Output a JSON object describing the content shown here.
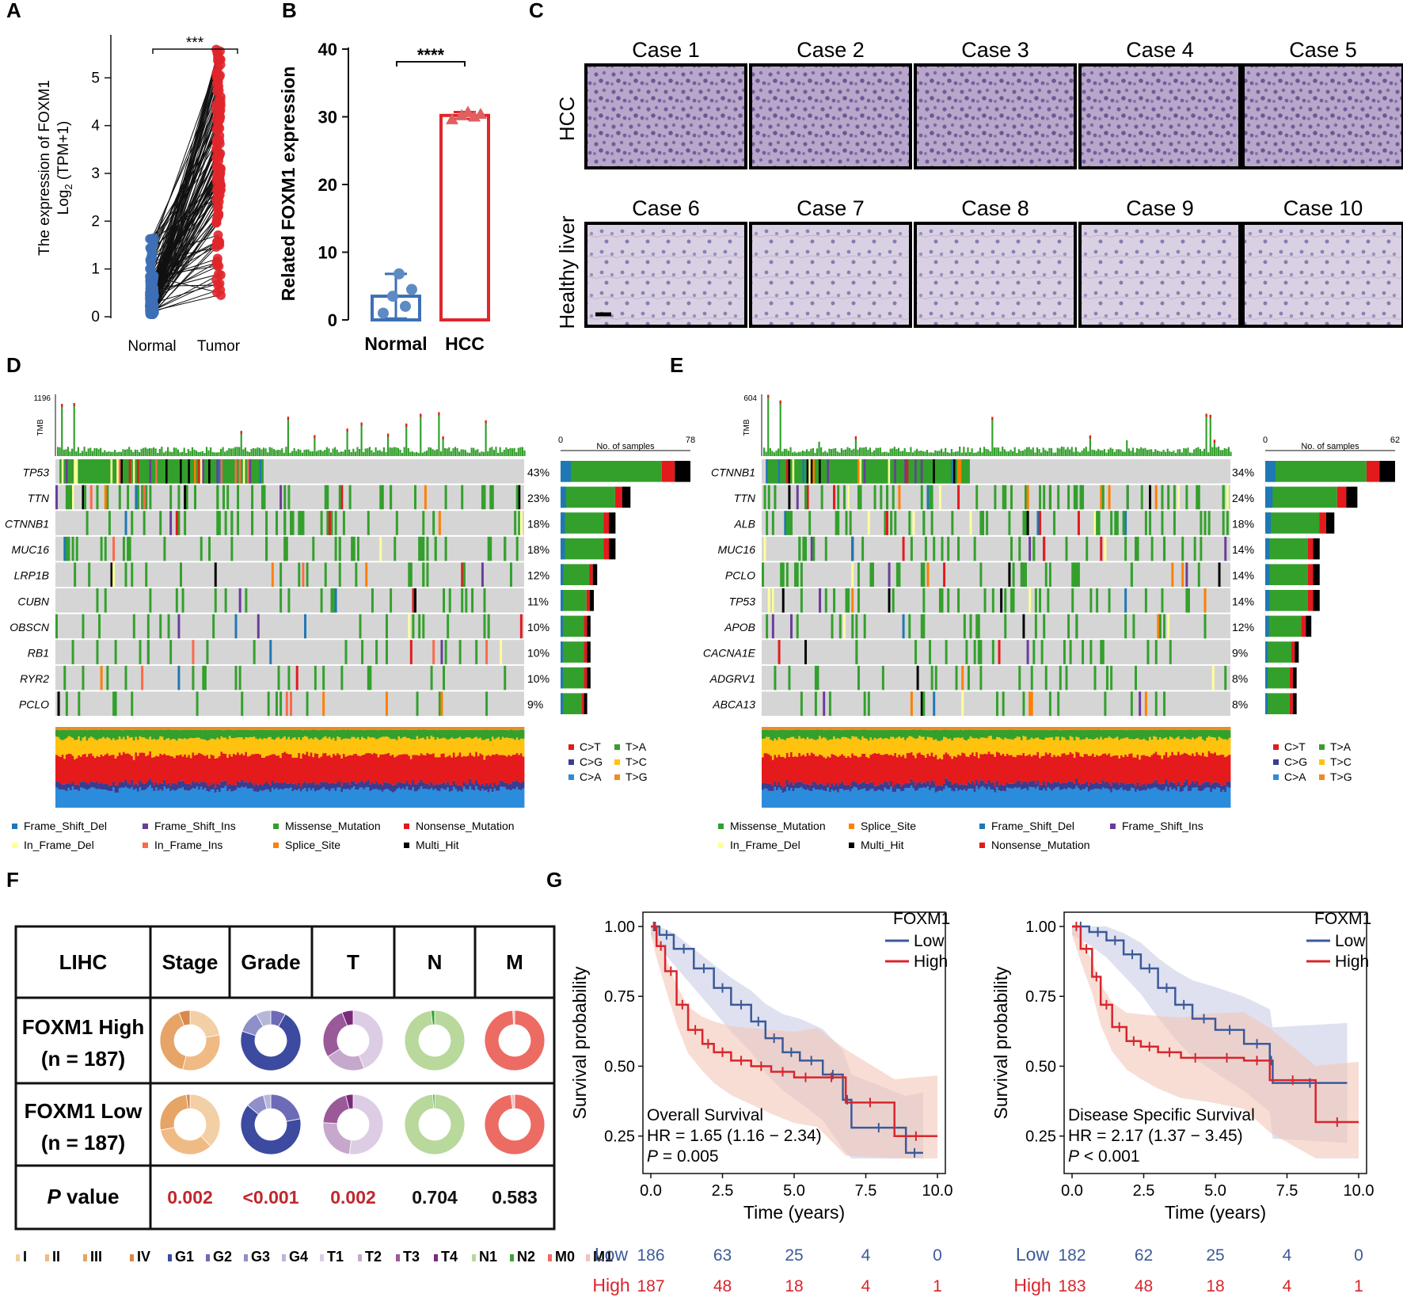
{
  "panel_labels": [
    "A",
    "B",
    "C",
    "D",
    "E",
    "F",
    "G"
  ],
  "colors": {
    "normal": "#3d6fb6",
    "tumor": "#e0262b",
    "lowline": "#3b5a9a",
    "highline": "#d7262c",
    "grey": "#d5d5d5",
    "Frame_Shift_Del": "#1f78b4",
    "Frame_Shift_Ins": "#6a3d9a",
    "Missense_Mutation": "#33a02c",
    "Nonsense_Mutation": "#e31a1c",
    "In_Frame_Del": "#ffff99",
    "In_Frame_Ins": "#fb6a4a",
    "Splice_Site": "#ff7f00",
    "Multi_Hit": "#000000",
    "CT": "#e41a1c",
    "CG": "#3a3d91",
    "CA": "#2b8cdc",
    "TA": "#33a02c",
    "TC": "#ffc20e",
    "TG": "#f08a24"
  },
  "chart_data": [
    {
      "id": "A",
      "type": "scatter",
      "ylabel": "The expression of FOXM1",
      "ylabel2": "Log2 (TPM+1)",
      "ylabel2_main": "Log",
      "ylabel2_sub": "2",
      "ylabel2_rest": " (TPM+1)",
      "categories": [
        "Normal",
        "Tumor"
      ],
      "yticks": [
        "0",
        "1",
        "2",
        "3",
        "4",
        "5"
      ],
      "ylim": [
        0,
        5.9
      ],
      "significance": "***",
      "normal_range": [
        0.05,
        1.75
      ],
      "tumor_range": [
        0.4,
        5.6
      ]
    },
    {
      "id": "B",
      "type": "bar",
      "ylabel": "Related FOXM1 expression",
      "categories": [
        "Normal",
        "HCC"
      ],
      "values": [
        3.5,
        30.2
      ],
      "error": [
        3.3,
        0.5
      ],
      "yticks": [
        "0",
        "10",
        "20",
        "30",
        "40"
      ],
      "ylim": [
        0,
        40
      ],
      "significance": "****",
      "normal_points": [
        1.0,
        2.0,
        3.5,
        4.5,
        6.8
      ],
      "hcc_points": [
        29.6,
        30.0,
        30.2,
        30.4,
        30.7
      ]
    },
    {
      "id": "C",
      "type": "image-grid",
      "row_labels": [
        "HCC",
        "Healthy liver"
      ],
      "cases": [
        "Case 1",
        "Case 2",
        "Case 3",
        "Case 4",
        "Case 5",
        "Case 6",
        "Case 7",
        "Case 8",
        "Case 9",
        "Case 10"
      ]
    },
    {
      "id": "D",
      "type": "oncoplot",
      "tmb_label": "TMB",
      "tmb_max": "1196",
      "axis_label": "No. of samples",
      "axis_min": "0",
      "axis_max": "78",
      "genes": [
        "TP53",
        "TTN",
        "CTNNB1",
        "MUC16",
        "LRP1B",
        "CUBN",
        "OBSCN",
        "RB1",
        "RYR2",
        "PCLO"
      ],
      "percents": [
        "43%",
        "23%",
        "18%",
        "18%",
        "12%",
        "11%",
        "10%",
        "10%",
        "10%",
        "9%"
      ],
      "counts": [
        78,
        42,
        33,
        33,
        22,
        20,
        18,
        18,
        18,
        16
      ],
      "sample_axis_max": 78,
      "legend": [
        "Frame_Shift_Del",
        "Frame_Shift_Ins",
        "Missense_Mutation",
        "Nonsense_Mutation",
        "In_Frame_Del",
        "In_Frame_Ins",
        "Splice_Site",
        "Multi_Hit"
      ],
      "titv_legend": [
        "C>T",
        "T>A",
        "C>G",
        "T>C",
        "C>A",
        "T>G"
      ]
    },
    {
      "id": "E",
      "type": "oncoplot",
      "tmb_label": "TMB",
      "tmb_max": "604",
      "axis_label": "No. of samples",
      "axis_min": "0",
      "axis_max": "62",
      "genes": [
        "CTNNB1",
        "TTN",
        "ALB",
        "MUC16",
        "PCLO",
        "TP53",
        "APOB",
        "CACNA1E",
        "ADGRV1",
        "ABCA13"
      ],
      "percents": [
        "34%",
        "24%",
        "18%",
        "14%",
        "14%",
        "14%",
        "12%",
        "9%",
        "8%",
        "8%"
      ],
      "counts": [
        62,
        44,
        33,
        26,
        26,
        26,
        22,
        16,
        15,
        15
      ],
      "sample_axis_max": 62,
      "legend": [
        "Missense_Mutation",
        "Splice_Site",
        "Frame_Shift_Del",
        "Frame_Shift_Ins",
        "In_Frame_Del",
        "Multi_Hit",
        "Nonsense_Mutation"
      ],
      "titv_legend": [
        "C>T",
        "T>A",
        "C>G",
        "T>C",
        "C>A",
        "T>G"
      ]
    },
    {
      "id": "F",
      "type": "table",
      "headers": [
        "LIHC",
        "Stage",
        "Grade",
        "T",
        "N",
        "M"
      ],
      "rows": [
        {
          "label1": "FOXM1 High",
          "label2": "(n = 187)"
        },
        {
          "label1": "FOXM1 Low",
          "label2": "(n = 187)"
        }
      ],
      "pvalue_label": "P",
      "pvalue_label_rest": " value",
      "pvalues": [
        "0.002",
        "<0.001",
        "0.002",
        "0.704",
        "0.583"
      ],
      "pvalue_colors": [
        "#c0272d",
        "#c0272d",
        "#c0272d",
        "#111111",
        "#111111"
      ],
      "donuts": {
        "high": [
          [
            0.22,
            0.32,
            0.4,
            0.06
          ],
          [
            0.08,
            0.72,
            0.12,
            0.08
          ],
          [
            0.44,
            0.22,
            0.28,
            0.06
          ],
          [
            0.98,
            0.02
          ],
          [
            0.99,
            0.01
          ]
        ],
        "low": [
          [
            0.38,
            0.34,
            0.26,
            0.02
          ],
          [
            0.22,
            0.64,
            0.1,
            0.04
          ],
          [
            0.52,
            0.24,
            0.2,
            0.04
          ],
          [
            0.99,
            0.01
          ],
          [
            0.98,
            0.02
          ]
        ]
      },
      "donut_colors": [
        [
          "#f3cfa5",
          "#efba84",
          "#e6a466",
          "#d9894b"
        ],
        [
          "#6d6bb8",
          "#3c4aa0",
          "#8f8fc9",
          "#b7b6da"
        ],
        [
          "#dccde4",
          "#c7a8cd",
          "#9a5a9a",
          "#7a2a7a"
        ],
        [
          "#b8d89c",
          "#3aa53a"
        ],
        [
          "#ec6b63",
          "#f4c2bd"
        ]
      ],
      "legend": [
        "I",
        "II",
        "III",
        "IV",
        "G1",
        "G2",
        "G3",
        "G4",
        "T1",
        "T2",
        "T3",
        "T4",
        "N1",
        "N2",
        "M0",
        "M1"
      ],
      "legend_colors": [
        "#f3cfa5",
        "#efba84",
        "#e6a466",
        "#d9894b",
        "#3c4aa0",
        "#6d6bb8",
        "#8f8fc9",
        "#b7b6da",
        "#dccde4",
        "#c7a8cd",
        "#9a5a9a",
        "#7a2a7a",
        "#b8d89c",
        "#3aa53a",
        "#ec6b63",
        "#f4c2bd"
      ]
    },
    {
      "id": "G1",
      "type": "line",
      "title": "Overall Survival",
      "hr": "HR = 1.65 (1.16 − 2.34)",
      "p": "P",
      "p_rest": " = 0.005",
      "xlabel": "Time (years)",
      "ylabel": "Survival probability",
      "xticks": [
        "0.0",
        "2.5",
        "5.0",
        "7.5",
        "10.0"
      ],
      "yticks": [
        "0.25",
        "0.50",
        "0.75",
        "1.00"
      ],
      "xlim": [
        0,
        10
      ],
      "ylim": [
        0.15,
        1.0
      ],
      "legend_title": "FOXM1",
      "legend": [
        "Low",
        "High"
      ],
      "series": [
        {
          "name": "Low",
          "x": [
            0,
            0.3,
            0.8,
            1.5,
            2.2,
            2.8,
            3.5,
            4.0,
            4.6,
            5.2,
            6.0,
            6.7,
            7.0,
            8.9,
            9.5
          ],
          "y": [
            1.0,
            0.97,
            0.92,
            0.85,
            0.78,
            0.72,
            0.66,
            0.6,
            0.55,
            0.52,
            0.47,
            0.38,
            0.28,
            0.19,
            0.19
          ]
        },
        {
          "name": "High",
          "x": [
            0,
            0.2,
            0.5,
            0.9,
            1.3,
            1.8,
            2.2,
            2.8,
            3.5,
            4.2,
            5.0,
            5.8,
            6.8,
            8.5,
            10.0
          ],
          "y": [
            1.0,
            0.93,
            0.84,
            0.72,
            0.63,
            0.58,
            0.55,
            0.52,
            0.5,
            0.48,
            0.46,
            0.46,
            0.37,
            0.25,
            0.25
          ]
        }
      ],
      "risk_labels": [
        "Low",
        "High"
      ],
      "risk_low": [
        "186",
        "63",
        "25",
        "4",
        "0"
      ],
      "risk_high": [
        "187",
        "48",
        "18",
        "4",
        "1"
      ]
    },
    {
      "id": "G2",
      "type": "line",
      "title": "Disease Specific Survival",
      "hr": "HR = 2.17 (1.37 − 3.45)",
      "p": "P",
      "p_rest": " < 0.001",
      "xlabel": "Time (years)",
      "ylabel": "Survival probability",
      "xticks": [
        "0.0",
        "2.5",
        "5.0",
        "7.5",
        "10.0"
      ],
      "yticks": [
        "0.25",
        "0.50",
        "0.75",
        "1.00"
      ],
      "xlim": [
        0,
        10
      ],
      "ylim": [
        0.15,
        1.0
      ],
      "legend_title": "FOXM1",
      "legend": [
        "Low",
        "High"
      ],
      "series": [
        {
          "name": "Low",
          "x": [
            0,
            0.6,
            1.2,
            1.8,
            2.4,
            3.0,
            3.6,
            4.2,
            5.0,
            6.0,
            6.9,
            7.0,
            9.6
          ],
          "y": [
            1.0,
            0.98,
            0.95,
            0.9,
            0.85,
            0.78,
            0.72,
            0.67,
            0.63,
            0.58,
            0.52,
            0.44,
            0.44
          ]
        },
        {
          "name": "High",
          "x": [
            0,
            0.3,
            0.7,
            1.0,
            1.4,
            1.9,
            2.4,
            3.0,
            3.8,
            4.8,
            6.0,
            6.9,
            8.5,
            10.0
          ],
          "y": [
            1.0,
            0.92,
            0.82,
            0.72,
            0.64,
            0.59,
            0.57,
            0.55,
            0.53,
            0.53,
            0.52,
            0.45,
            0.3,
            0.3
          ]
        }
      ],
      "risk_labels": [
        "Low",
        "High"
      ],
      "risk_low": [
        "182",
        "62",
        "25",
        "4",
        "0"
      ],
      "risk_high": [
        "183",
        "48",
        "18",
        "4",
        "1"
      ]
    }
  ]
}
